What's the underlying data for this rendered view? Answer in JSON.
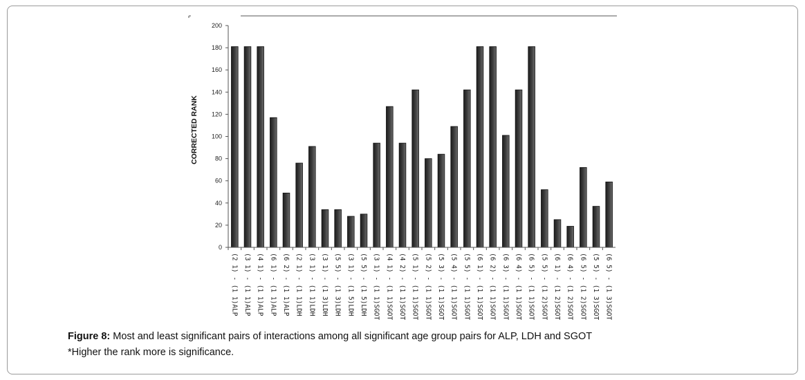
{
  "figure": {
    "label": "Figure 8:",
    "caption": " Most and least significant pairs of interactions among all significant age group pairs for ALP, LDH and SGOT",
    "note": "*Higher the rank more is significance."
  },
  "chart_data": {
    "type": "bar",
    "ylabel": "CORRECTED RANK",
    "xlabel": "",
    "ylim": [
      0,
      200
    ],
    "yticks": [
      0,
      20,
      40,
      60,
      80,
      100,
      120,
      140,
      160,
      180,
      200
    ],
    "grid": false,
    "bar_color": "#3a3a3a",
    "categories": [
      "(2 1) - (1 1)ALP",
      "(3 1) - (1 1)ALP",
      "(4 1) - (1 1)ALP",
      "(6 1) - (1 1)ALP",
      "(6 2) - (1 1)ALP",
      "(2 1) - (1 1)LDH",
      "(3 1) - (1 1)LDH",
      "(3 1) - (1 3)LDH",
      "(5 5) - (1 3)LDH",
      "(3 1) - (1 5)LDH",
      "(5 5) - (1 5)LDH",
      "(3 1) - (1 1)SGOT",
      "(4 1) - (1 1)SGOT",
      "(4 2) - (1 1)SGOT",
      "(5 1) - (1 1)SGOT",
      "(5 2) - (1 1)SGOT",
      "(5 3) - (1 1)SGOT",
      "(5 4) - (1 1)SGOT",
      "(5 5) - (1 1)SGOT",
      "(6 1) - (1 1)SGOT",
      "(6 2) - (1 1)SGOT",
      "(6 3) - (1 1)SGOT",
      "(6 4) - (1 1)SGOT",
      "(6 5) - (1 1)SGOT",
      "(5 5) - (1 2)SGOT",
      "(6 1) - (1 2)SGOT",
      "(6 4) - (1 2)SGOT",
      "(6 5) - (1 2)SGOT",
      "(5 5) - (1 3)SGOT",
      "(6 5) - (1 3)SGOT"
    ],
    "values": [
      181,
      181,
      181,
      117,
      49,
      76,
      91,
      34,
      34,
      28,
      30,
      94,
      127,
      94,
      142,
      80,
      84,
      109,
      142,
      181,
      181,
      101,
      142,
      181,
      52,
      25,
      19,
      72,
      37,
      59
    ]
  }
}
